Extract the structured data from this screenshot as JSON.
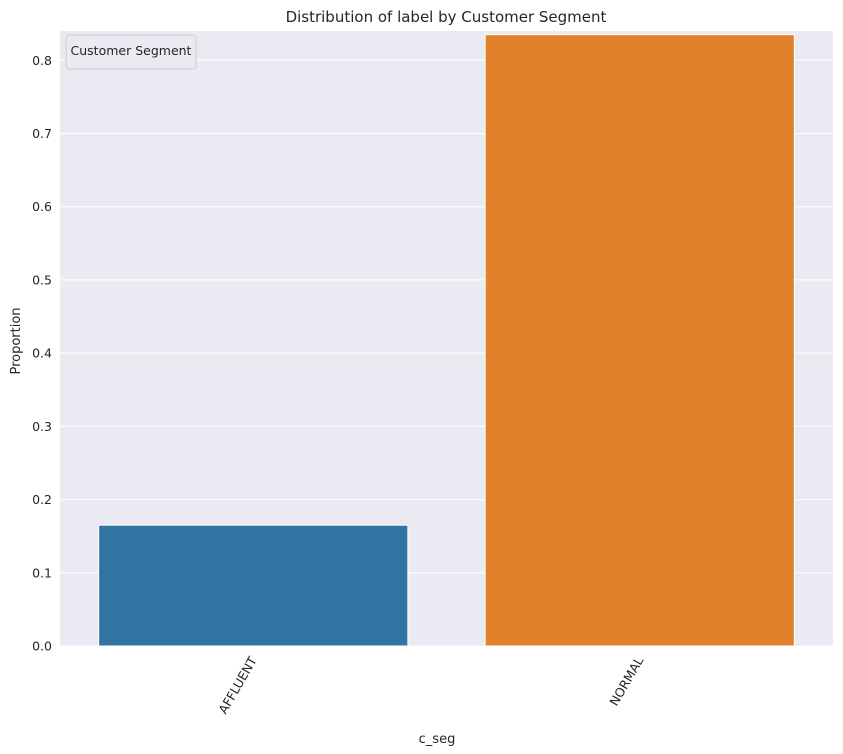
{
  "chart_data": {
    "type": "bar",
    "title": "Distribution of label by Customer Segment",
    "xlabel": "c_seg",
    "ylabel": "Proportion",
    "categories": [
      "AFFLUENT",
      "NORMAL"
    ],
    "values": [
      0.165,
      0.835
    ],
    "colors": [
      "#3274a1",
      "#e1812c"
    ],
    "ylim": [
      0,
      0.84
    ],
    "yticks": [
      "0.0",
      "0.1",
      "0.2",
      "0.3",
      "0.4",
      "0.5",
      "0.6",
      "0.7",
      "0.8"
    ],
    "ytick_values": [
      0,
      0.1,
      0.2,
      0.3,
      0.4,
      0.5,
      0.6,
      0.7,
      0.8
    ],
    "grid": true,
    "xtick_rotation": 60,
    "legend": {
      "title": "Customer Segment",
      "placement": "top-left"
    }
  },
  "style": {
    "plot_background": "#eaeaf2",
    "grid_color": "#ffffff"
  }
}
